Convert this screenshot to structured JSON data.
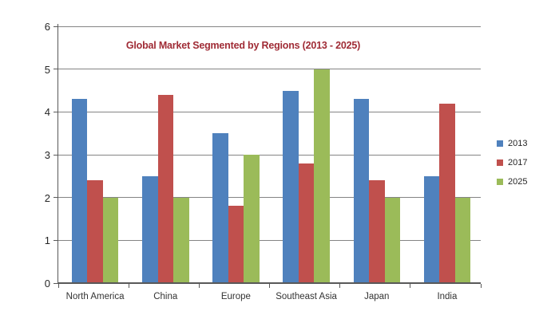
{
  "chart_data": {
    "type": "bar",
    "title": "Global Market Segmented by Regions (2013 - 2025)",
    "categories": [
      "North America",
      "China",
      "Europe",
      "Southeast Asia",
      "Japan",
      "India"
    ],
    "series": [
      {
        "name": "2013",
        "color": "#4F81BD",
        "values": [
          4.3,
          2.5,
          3.5,
          4.5,
          4.3,
          2.5
        ]
      },
      {
        "name": "2017",
        "color": "#C0504D",
        "values": [
          2.4,
          4.4,
          1.8,
          2.8,
          2.4,
          4.2
        ]
      },
      {
        "name": "2025",
        "color": "#9BBB59",
        "values": [
          2.0,
          2.0,
          3.0,
          5.0,
          2.0,
          2.0
        ]
      }
    ],
    "ylim": [
      0,
      6
    ],
    "ytick_step": 1,
    "grid": true,
    "legend_position": "right",
    "title_color": "#A02C36",
    "axis_color": "#595959",
    "grid_color": "#848484"
  }
}
